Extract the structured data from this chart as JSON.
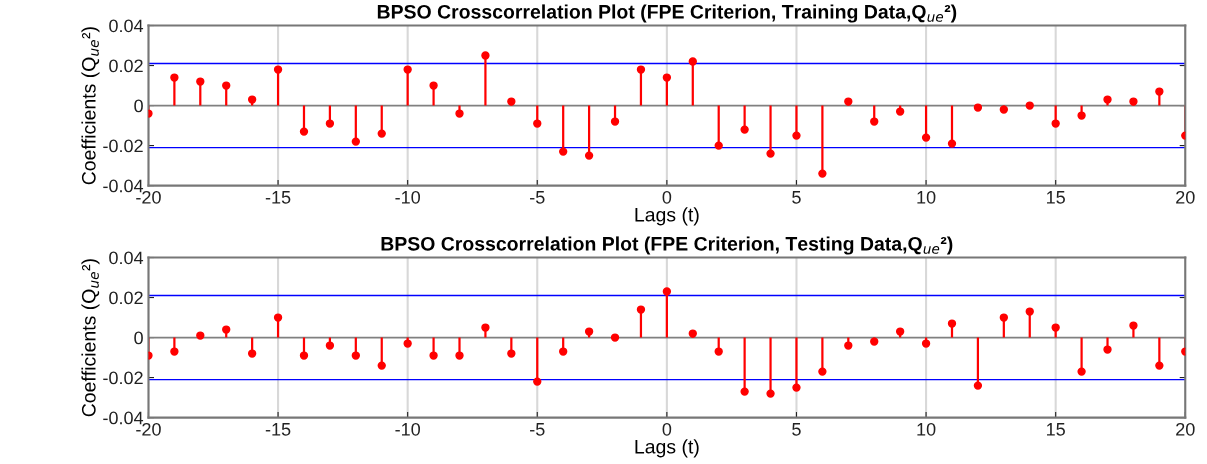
{
  "chart_data": [
    {
      "type": "lollipop",
      "title": "BPSO Crosscorrelation Plot (FPE Criterion, Training Data,Q$_{ue}$²)",
      "xlabel": "Lags (t)",
      "ylabel": "Coefficients (Q$_{ue}$²)",
      "x": [
        -20,
        -19,
        -18,
        -17,
        -16,
        -15,
        -14,
        -13,
        -12,
        -11,
        -10,
        -9,
        -8,
        -7,
        -6,
        -5,
        -4,
        -3,
        -2,
        -1,
        0,
        1,
        2,
        3,
        4,
        5,
        6,
        7,
        8,
        9,
        10,
        11,
        12,
        13,
        14,
        15,
        16,
        17,
        18,
        19,
        20
      ],
      "values": [
        -0.004,
        0.014,
        0.012,
        0.01,
        0.003,
        0.018,
        -0.013,
        -0.009,
        -0.018,
        -0.014,
        0.018,
        0.01,
        -0.004,
        0.025,
        0.002,
        -0.009,
        -0.023,
        -0.025,
        -0.008,
        0.018,
        0.014,
        0.022,
        -0.02,
        -0.012,
        -0.024,
        -0.015,
        -0.034,
        0.002,
        -0.008,
        -0.003,
        -0.016,
        -0.019,
        -0.001,
        -0.002,
        0.0,
        -0.009,
        -0.005,
        0.003,
        0.002,
        0.007,
        -0.015
      ],
      "color": "#ff0000",
      "marker": "circle",
      "xlim": [
        -20,
        20
      ],
      "ylim": [
        -0.04,
        0.04
      ],
      "xticks": [
        -20,
        -15,
        -10,
        -5,
        0,
        5,
        10,
        15,
        20
      ],
      "yticks": [
        -0.04,
        -0.02,
        0,
        0.02,
        0.04
      ],
      "grid": "x",
      "ref_lines": [
        {
          "axis": "y",
          "value": 0.021,
          "color": "#0000ff"
        },
        {
          "axis": "y",
          "value": -0.021,
          "color": "#0000ff"
        }
      ]
    },
    {
      "type": "lollipop",
      "title": "BPSO Crosscorrelation Plot (FPE Criterion, Testing Data,Q$_{ue}$²)",
      "xlabel": "Lags (t)",
      "ylabel": "Coefficients (Q$_{ue}$²)",
      "x": [
        -20,
        -19,
        -18,
        -17,
        -16,
        -15,
        -14,
        -13,
        -12,
        -11,
        -10,
        -9,
        -8,
        -7,
        -6,
        -5,
        -4,
        -3,
        -2,
        -1,
        0,
        1,
        2,
        3,
        4,
        5,
        6,
        7,
        8,
        9,
        10,
        11,
        12,
        13,
        14,
        15,
        16,
        17,
        18,
        19,
        20
      ],
      "values": [
        -0.009,
        -0.007,
        0.001,
        0.004,
        -0.008,
        0.01,
        -0.009,
        -0.004,
        -0.009,
        -0.014,
        -0.003,
        -0.009,
        -0.009,
        0.005,
        -0.008,
        -0.022,
        -0.007,
        0.003,
        0.0,
        0.014,
        0.023,
        0.002,
        -0.007,
        -0.027,
        -0.028,
        -0.025,
        -0.017,
        -0.004,
        -0.002,
        0.003,
        -0.003,
        0.007,
        -0.024,
        0.01,
        0.013,
        0.005,
        -0.017,
        -0.006,
        0.006,
        -0.014,
        -0.007
      ],
      "color": "#ff0000",
      "marker": "circle",
      "xlim": [
        -20,
        20
      ],
      "ylim": [
        -0.04,
        0.04
      ],
      "xticks": [
        -20,
        -15,
        -10,
        -5,
        0,
        5,
        10,
        15,
        20
      ],
      "yticks": [
        -0.04,
        -0.02,
        0,
        0.02,
        0.04
      ],
      "grid": "x",
      "ref_lines": [
        {
          "axis": "y",
          "value": 0.021,
          "color": "#0000ff"
        },
        {
          "axis": "y",
          "value": -0.021,
          "color": "#0000ff"
        }
      ]
    }
  ]
}
